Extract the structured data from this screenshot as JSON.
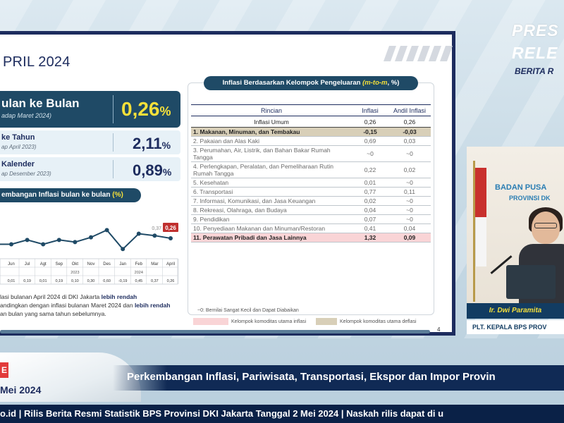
{
  "slide": {
    "title": "PRIL 2024",
    "main_stat": {
      "label": "ulan ke Bulan",
      "sub": "adap Maret 2024)",
      "value": "0,26",
      "unit": "%"
    },
    "yoy_stat": {
      "label": "ke Tahun",
      "sub": "ap April 2023)",
      "value": "2,11",
      "unit": "%"
    },
    "ytd_stat": {
      "label": "Kalender",
      "sub": "ap Desember 2023)",
      "value": "0,89",
      "unit": "%"
    },
    "chart_pill": "embangan Inflasi bulan ke bulan",
    "chart_pill_pct": "(%)",
    "note_parts": [
      "lasi bulanan April 2024 di DKI Jakarta ",
      "lebih rendah",
      " andingkan dengan inflasi bulanan Maret 2024 dan ",
      "lebih rendah",
      " an bulan yang sama tahun sebelumnya."
    ],
    "page_number": "4",
    "legend_inflasi": "Kelompok komoditas utama inflasi",
    "legend_deflasi": "Kelompok komoditas utama deflasi",
    "footnote": "~0: Bernilai Sangat Kecil dan Dapat Diabaikan"
  },
  "table": {
    "title": "Inflasi Berdasarkan Kelompok Pengeluaran ",
    "title_unit": "(m-to-m",
    "title_pct": ", %)",
    "headers": [
      "Rincian",
      "Inflasi",
      "Andil Inflasi"
    ],
    "umum": [
      "Inflasi Umum",
      "0,26",
      "0,26"
    ],
    "rows": [
      {
        "label": "1.  Makanan, Minuman, dan Tembakau",
        "inflasi": "-0,15",
        "andil": "-0,03"
      },
      {
        "label": "2.  Pakaian dan Alas Kaki",
        "inflasi": "0,69",
        "andil": "0,03"
      },
      {
        "label": "3.  Perumahan, Air, Listrik, dan Bahan Bakar Rumah Tangga",
        "inflasi": "~0",
        "andil": "~0"
      },
      {
        "label": "4.  Perlengkapan, Peralatan, dan Pemeliharaan Rutin Rumah Tangga",
        "inflasi": "0,22",
        "andil": "0,02"
      },
      {
        "label": "5.  Kesehatan",
        "inflasi": "0,01",
        "andil": "~0"
      },
      {
        "label": "6.  Transportasi",
        "inflasi": "0,77",
        "andil": "0,11"
      },
      {
        "label": "7.  Informasi, Komunikasi, dan Jasa Keuangan",
        "inflasi": "0,02",
        "andil": "~0"
      },
      {
        "label": "8.  Rekreasi, Olahraga, dan Budaya",
        "inflasi": "0,04",
        "andil": "~0"
      },
      {
        "label": "9.  Pendidikan",
        "inflasi": "0,07",
        "andil": "~0"
      },
      {
        "label": "10. Penyediaan Makanan dan Minuman/Restoran",
        "inflasi": "0,41",
        "andil": "0,04"
      },
      {
        "label": "11. Perawatan Pribadi dan Jasa Lainnya",
        "inflasi": "1,32",
        "andil": "0,09"
      }
    ]
  },
  "chart_data": {
    "type": "line",
    "categories": [
      "Jun",
      "Jul",
      "Agt",
      "Sep",
      "Okt",
      "Nov",
      "Des",
      "Jan",
      "Feb",
      "Mar",
      "April"
    ],
    "values": [
      0.01,
      0.19,
      0.01,
      0.19,
      0.1,
      0.3,
      0.6,
      -0.19,
      0.45,
      0.37,
      0.26
    ],
    "row_values": [
      "0,01",
      "0,19",
      "0,01",
      "0,19",
      "0,10",
      "0,30",
      "0,60",
      "-0,19",
      "0,45",
      "0,37",
      "0,26"
    ],
    "year_labels": [
      "2023",
      "2024"
    ],
    "point_labels": {
      "Mar": "0,37",
      "April": "0,26"
    },
    "highlight_color": "#c0302f",
    "line_color": "#1f4a66"
  },
  "brand": {
    "press1": "PRES",
    "press2": "RELE",
    "berita": "BERITA R"
  },
  "speaker": {
    "wall_text1": "BADAN PUSA",
    "wall_text2": "PROVINSI DK",
    "name": "Ir. Dwi Paramita",
    "role": "PLT. KEPALA BPS PROV"
  },
  "lower_third": {
    "live_badge": "E",
    "date": "Mei 2024",
    "headline": "Perkembangan Inflasi, Pariwisata, Transportasi, Ekspor dan Impor Provin",
    "ticker": "o.id | Rilis Berita Resmi Statistik BPS Provinsi DKI Jakarta Tanggal 2 Mei 2024 | Naskah rilis dapat di u"
  },
  "colors": {
    "navy": "#1d2c5e",
    "teal_dark": "#1f4a66",
    "yellow": "#f5e03a",
    "deflasi_row": "#d8cfb8",
    "inflasi_row": "#f9d4d6"
  }
}
